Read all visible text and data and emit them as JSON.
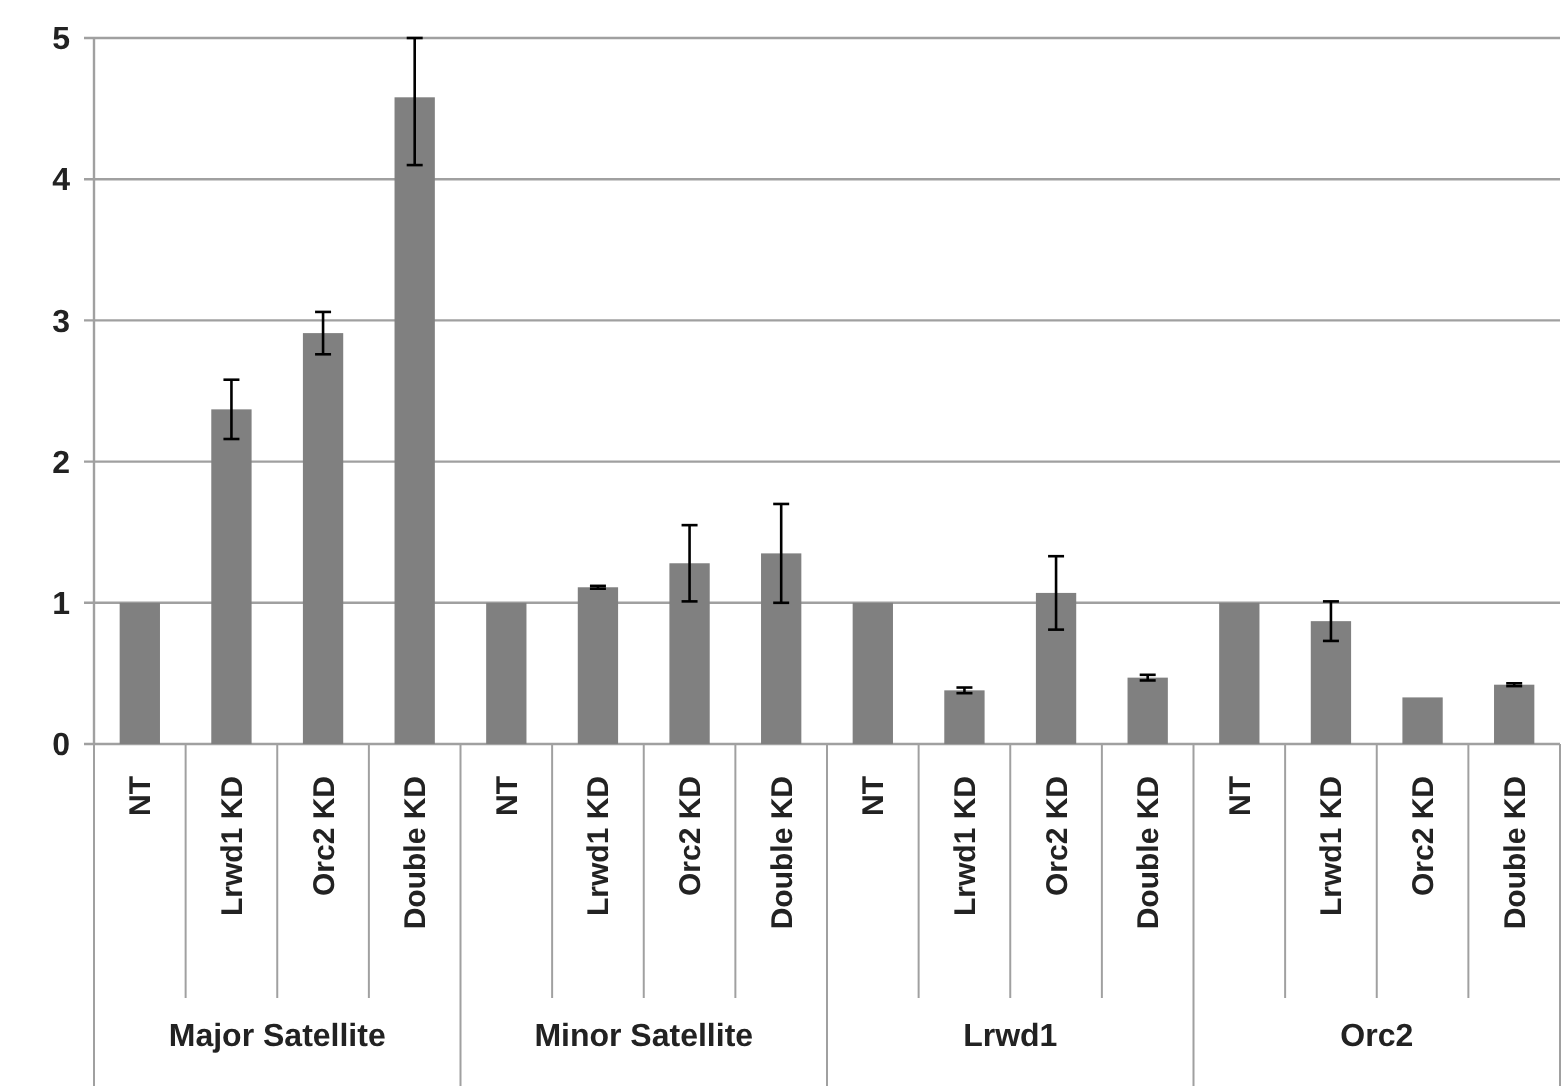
{
  "chart_data": {
    "type": "bar",
    "categories": [
      "NT",
      "Lrwd1 KD",
      "Orc2 KD",
      "Double KD",
      "NT",
      "Lrwd1 KD",
      "Orc2 KD",
      "Double KD",
      "NT",
      "Lrwd1 KD",
      "Orc2 KD",
      "Double KD",
      "NT",
      "Lrwd1 KD",
      "Orc2 KD",
      "Double KD"
    ],
    "values": [
      1,
      2.37,
      2.91,
      4.58,
      1,
      1.11,
      1.28,
      1.35,
      1,
      0.38,
      1.07,
      0.47,
      1,
      0.87,
      0.33,
      0.42
    ],
    "errors": [
      null,
      0.21,
      0.15,
      [
        4.1,
        5
      ],
      null,
      0.01,
      0.27,
      0.35,
      null,
      0.02,
      0.26,
      0.02,
      null,
      0.14,
      null,
      0.01
    ],
    "color": "#808080",
    "ylim": [
      0,
      5
    ],
    "yticks": [
      0,
      1,
      2,
      3,
      4,
      5
    ],
    "grid": "y",
    "annotations": [
      "Major Satellite",
      "Minor Satellite",
      "Lrwd1",
      "Orc2"
    ]
  }
}
